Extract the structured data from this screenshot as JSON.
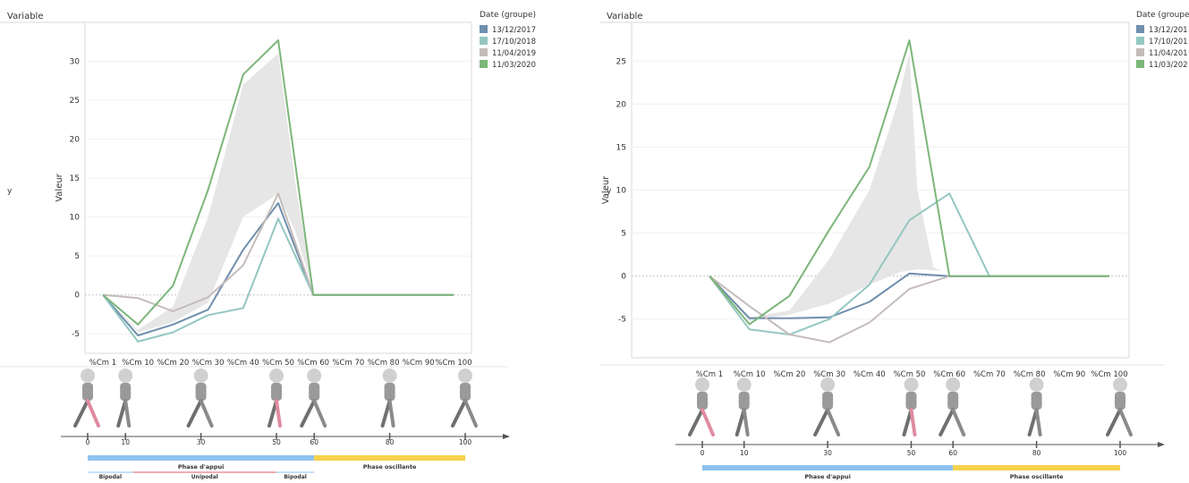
{
  "chart_data": [
    {
      "type": "line",
      "header": "Variable",
      "row_label": "y",
      "ylabel": "Valeur",
      "xlabel": "",
      "x": [
        "%Cm 1",
        "%Cm 10",
        "%Cm 20",
        "%Cm 30",
        "%Cm 40",
        "%Cm 50",
        "%Cm 60",
        "%Cm 70",
        "%Cm 80",
        "%Cm 90",
        "%Cm 100"
      ],
      "yticks": [
        -5,
        0,
        5,
        10,
        15,
        20,
        25,
        30
      ],
      "ylim": [
        -7.5,
        35
      ],
      "grid": true,
      "legend_title": "Date (groupe)",
      "legend_position": "right",
      "series": [
        {
          "name": "13/12/2017",
          "color": "#6f8fae",
          "values": [
            0,
            -5.2,
            -3.8,
            -1.9,
            5.8,
            11.8,
            0,
            0,
            0,
            0,
            0
          ]
        },
        {
          "name": "17/10/2018",
          "color": "#94c7c1",
          "values": [
            0,
            -6.0,
            -4.8,
            -2.6,
            -1.7,
            9.8,
            0,
            0,
            0,
            0,
            0
          ]
        },
        {
          "name": "11/04/2019",
          "color": "#c4bcb9",
          "values": [
            0,
            -0.4,
            -2.1,
            -0.3,
            3.8,
            13.0,
            0,
            0,
            0,
            0,
            0
          ]
        },
        {
          "name": "11/03/2020",
          "color": "#7cb67a",
          "values": [
            0,
            -3.8,
            1.2,
            13.5,
            28.3,
            32.7,
            0,
            0,
            0,
            0,
            0
          ]
        }
      ],
      "band": {
        "color": "#e6e6e6",
        "upper": [
          [
            0,
            0
          ],
          [
            10,
            -4.5
          ],
          [
            20,
            -1.5
          ],
          [
            30,
            10
          ],
          [
            40,
            27
          ],
          [
            50,
            31
          ],
          [
            55,
            14
          ],
          [
            60,
            0.5
          ]
        ],
        "lower": [
          [
            60,
            0.5
          ],
          [
            55,
            8
          ],
          [
            50,
            13
          ],
          [
            40,
            10
          ],
          [
            30,
            -1
          ],
          [
            20,
            -3.5
          ],
          [
            10,
            -4.8
          ],
          [
            0,
            0
          ]
        ]
      },
      "gait": {
        "ticks": [
          "0",
          "10",
          "30",
          "50",
          "60",
          "80",
          "100"
        ],
        "phases": [
          {
            "label": "Phase d'appui",
            "color": "#8ec2f0",
            "from": 0,
            "to": 60
          },
          {
            "label": "Phase oscillante",
            "color": "#f7d24a",
            "from": 60,
            "to": 100
          }
        ],
        "sub_phases": [
          {
            "label": "Bipodal",
            "color": "#8ec2f0",
            "from": 0,
            "to": 12
          },
          {
            "label": "Unipodal",
            "color": "#e05a6a",
            "from": 12,
            "to": 50
          },
          {
            "label": "Bipodal",
            "color": "#8ec2f0",
            "from": 50,
            "to": 60
          }
        ]
      }
    },
    {
      "type": "line",
      "header": "Variable",
      "row_label": "y",
      "ylabel": "Valeur",
      "xlabel": "",
      "x": [
        "%Cm 1",
        "%Cm 10",
        "%Cm 20",
        "%Cm 30",
        "%Cm 40",
        "%Cm 50",
        "%Cm 60",
        "%Cm 70",
        "%Cm 80",
        "%Cm 90",
        "%Cm 100"
      ],
      "yticks": [
        -5,
        0,
        5,
        10,
        15,
        20,
        25
      ],
      "ylim": [
        -9.5,
        29.5
      ],
      "grid": true,
      "legend_title": "Date (groupe)",
      "legend_position": "right",
      "series": [
        {
          "name": "13/12/201",
          "color": "#6f8fae",
          "values": [
            0,
            -4.9,
            -4.9,
            -4.8,
            -3.0,
            0.3,
            0,
            0,
            0,
            0,
            0
          ]
        },
        {
          "name": "17/10/201",
          "color": "#94c7c1",
          "values": [
            0,
            -6.2,
            -6.8,
            -5.0,
            -1.0,
            6.5,
            9.6,
            0,
            0,
            0,
            0
          ]
        },
        {
          "name": "11/04/201",
          "color": "#c4bcb9",
          "values": [
            0,
            -3.5,
            -6.8,
            -7.7,
            -5.4,
            -1.5,
            0,
            0,
            0,
            0,
            0
          ]
        },
        {
          "name": "11/03/202",
          "color": "#7cb67a",
          "values": [
            0,
            -5.6,
            -2.3,
            5.4,
            12.7,
            27.4,
            0,
            0,
            0,
            0,
            0
          ]
        }
      ],
      "band": {
        "color": "#e6e6e6",
        "upper": [
          [
            0,
            0
          ],
          [
            10,
            -4.8
          ],
          [
            20,
            -4
          ],
          [
            30,
            2
          ],
          [
            40,
            10
          ],
          [
            47,
            20
          ],
          [
            50,
            26
          ],
          [
            52,
            10
          ],
          [
            56,
            1
          ],
          [
            58,
            0.6
          ]
        ],
        "lower": [
          [
            58,
            0.6
          ],
          [
            52,
            0.8
          ],
          [
            48,
            0.5
          ],
          [
            40,
            -1
          ],
          [
            30,
            -3.2
          ],
          [
            20,
            -4.5
          ],
          [
            10,
            -5.2
          ],
          [
            0,
            0
          ]
        ]
      },
      "gait": {
        "ticks": [
          "0",
          "10",
          "30",
          "50",
          "60",
          "80",
          "100"
        ],
        "phases": [
          {
            "label": "Phase d'appui",
            "color": "#8ec2f0",
            "from": 0,
            "to": 60
          },
          {
            "label": "Phase oscillante",
            "color": "#f7d24a",
            "from": 60,
            "to": 100
          }
        ],
        "sub_phases": []
      }
    }
  ]
}
